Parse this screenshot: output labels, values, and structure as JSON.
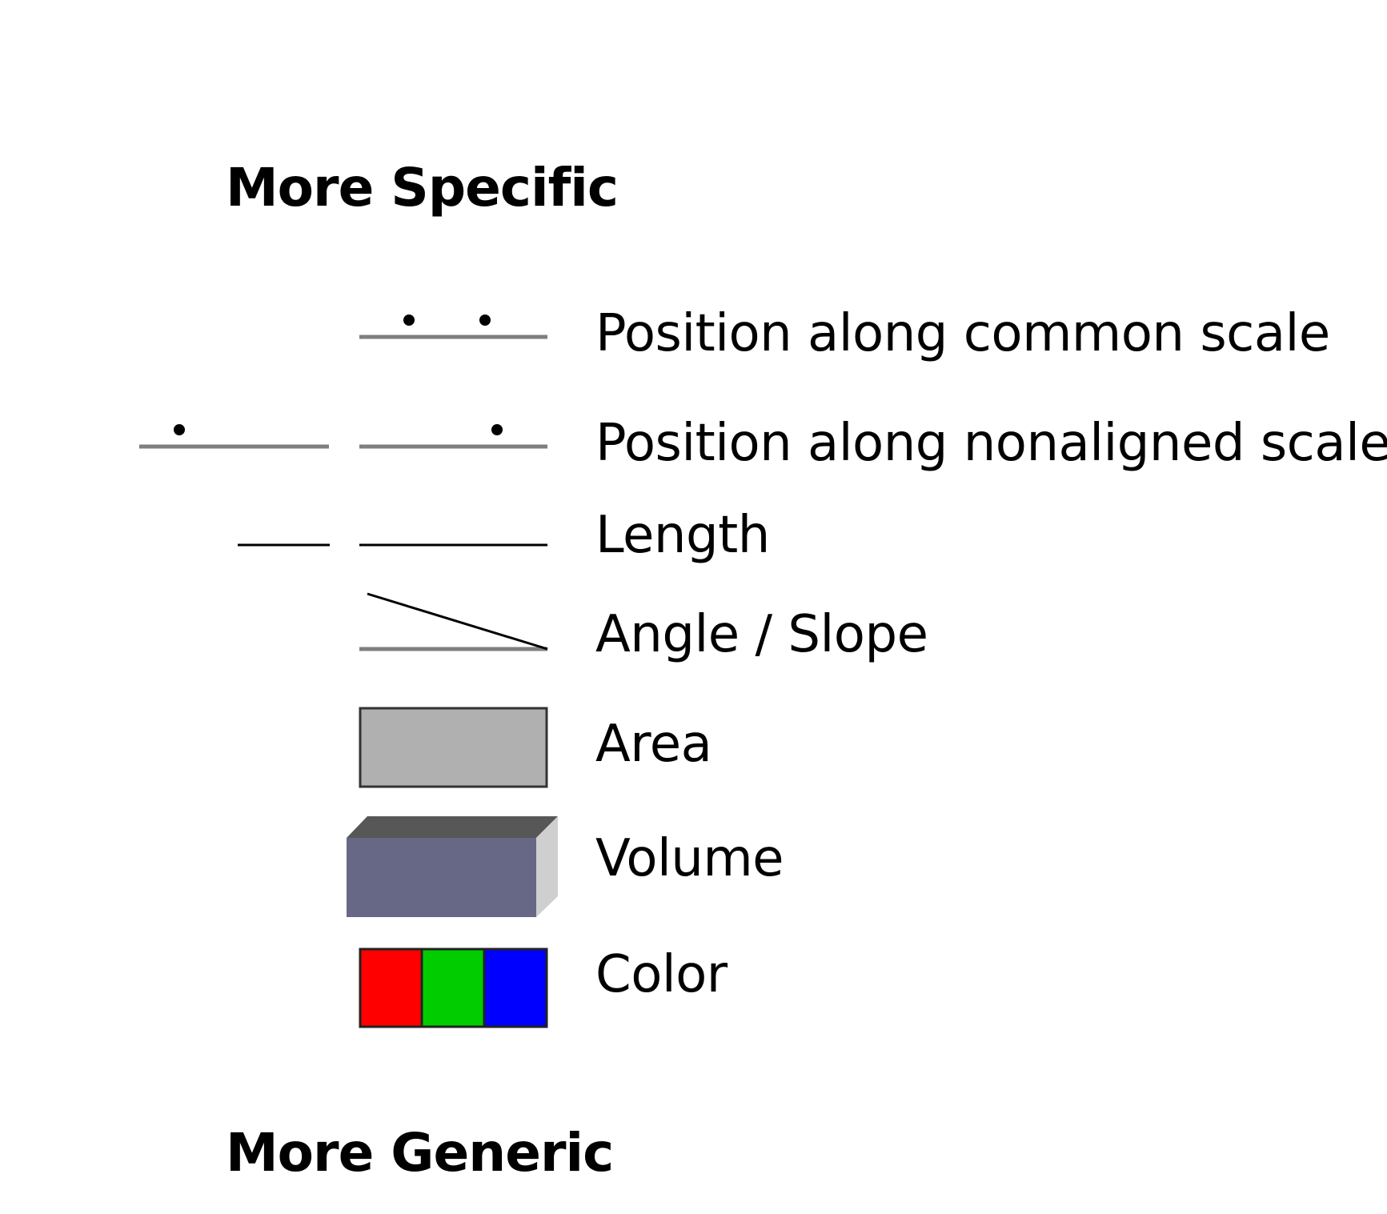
{
  "headings": {
    "top": "More Specific",
    "bottom": "More Generic"
  },
  "encodings": [
    {
      "id": "position-common",
      "label": "Position along common scale"
    },
    {
      "id": "position-nonaligned",
      "label": "Position along nonaligned scale"
    },
    {
      "id": "length",
      "label": "Length"
    },
    {
      "id": "angle-slope",
      "label": "Angle / Slope"
    },
    {
      "id": "area",
      "label": "Area"
    },
    {
      "id": "volume",
      "label": "Volume"
    },
    {
      "id": "color",
      "label": "Color"
    }
  ],
  "colors": {
    "line": "#7f7f7f",
    "dark_line": "#000000",
    "area_fill": "#b0b0b0",
    "volume_front": "#676885",
    "volume_top": "#575757",
    "volume_side": "#cfcfcf",
    "color_swatches": [
      "#ff0000",
      "#00cc00",
      "#0000ff"
    ]
  }
}
